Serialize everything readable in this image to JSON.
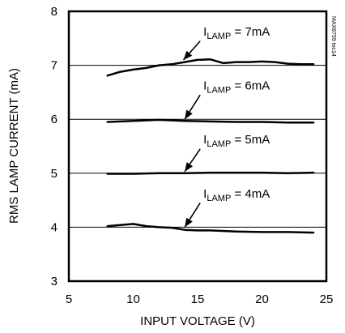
{
  "chart_data": {
    "type": "line",
    "xlabel": "INPUT VOLTAGE (V)",
    "ylabel": "RMS LAMP CURRENT (mA)",
    "xlim": [
      5,
      25
    ],
    "ylim": [
      3,
      8
    ],
    "x_ticks": [
      "5",
      "10",
      "15",
      "20",
      "25"
    ],
    "y_ticks": [
      "3",
      "4",
      "5",
      "6",
      "7",
      "8"
    ],
    "grid": "horizontal",
    "legend": "none",
    "series": [
      {
        "name": "ILAMP = 7mA",
        "x": [
          8,
          9,
          10,
          11,
          12,
          13,
          14,
          15,
          16,
          17,
          18,
          19,
          20,
          21,
          22,
          23,
          24
        ],
        "y": [
          6.81,
          6.88,
          6.92,
          6.95,
          7.0,
          7.02,
          7.06,
          7.1,
          7.11,
          7.04,
          7.06,
          7.06,
          7.07,
          7.06,
          7.03,
          7.02,
          7.02
        ]
      },
      {
        "name": "ILAMP = 6mA",
        "x": [
          8,
          10,
          12,
          14,
          16,
          18,
          20,
          22,
          24
        ],
        "y": [
          5.95,
          5.97,
          5.99,
          5.97,
          5.96,
          5.95,
          5.95,
          5.94,
          5.94
        ]
      },
      {
        "name": "ILAMP = 5mA",
        "x": [
          8,
          10,
          12,
          14,
          16,
          18,
          20,
          22,
          24
        ],
        "y": [
          4.99,
          4.99,
          5.0,
          5.0,
          5.01,
          5.01,
          5.01,
          5.0,
          5.01
        ]
      },
      {
        "name": "ILAMP = 4mA",
        "x": [
          8,
          9,
          10,
          11,
          12,
          13,
          14,
          15,
          16,
          18,
          20,
          22,
          24
        ],
        "y": [
          4.02,
          4.04,
          4.06,
          4.02,
          4.0,
          3.99,
          3.95,
          3.94,
          3.94,
          3.92,
          3.91,
          3.91,
          3.9
        ]
      }
    ],
    "annotations": [
      {
        "base": "I",
        "sub": "LAMP",
        "suffix": " = 7mA",
        "text_x": 15.2,
        "text_y": 7.55,
        "arrow_from": [
          15.2,
          7.45
        ],
        "arrow_to": [
          13.9,
          7.1
        ]
      },
      {
        "base": "I",
        "sub": "LAMP",
        "suffix": " = 6mA",
        "text_x": 15.2,
        "text_y": 6.55,
        "arrow_from": [
          15.2,
          6.45
        ],
        "arrow_to": [
          14.0,
          6.0
        ]
      },
      {
        "base": "I",
        "sub": "LAMP",
        "suffix": " = 5mA",
        "text_x": 15.2,
        "text_y": 5.55,
        "arrow_from": [
          15.2,
          5.45
        ],
        "arrow_to": [
          14.0,
          5.03
        ]
      },
      {
        "base": "I",
        "sub": "LAMP",
        "suffix": " = 4mA",
        "text_x": 15.2,
        "text_y": 4.55,
        "arrow_from": [
          15.2,
          4.45
        ],
        "arrow_to": [
          14.0,
          4.0
        ]
      }
    ],
    "figure_code": "MAX8759 toc14"
  }
}
